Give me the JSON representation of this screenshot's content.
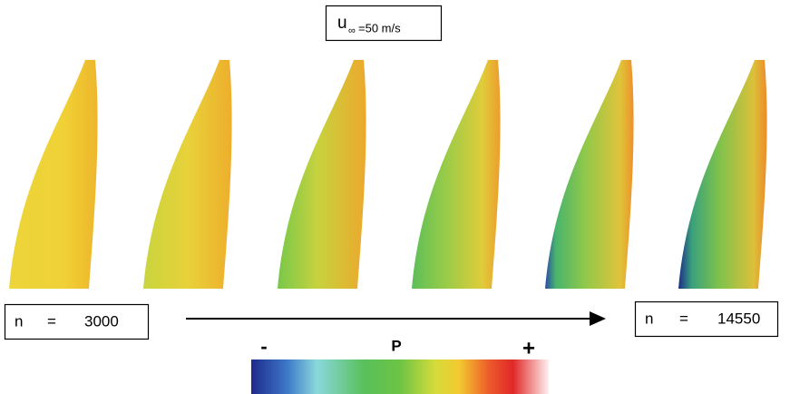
{
  "velocity_label": {
    "symbol": "u",
    "subscript": "∞",
    "value": "=50 m/s"
  },
  "start_label": {
    "variable": "n",
    "equals": "=",
    "value": "3000"
  },
  "end_label": {
    "variable": "n",
    "equals": "=",
    "value": "14550"
  },
  "colorbar": {
    "min_label": "-",
    "title": "P",
    "max_label": "+"
  }
}
